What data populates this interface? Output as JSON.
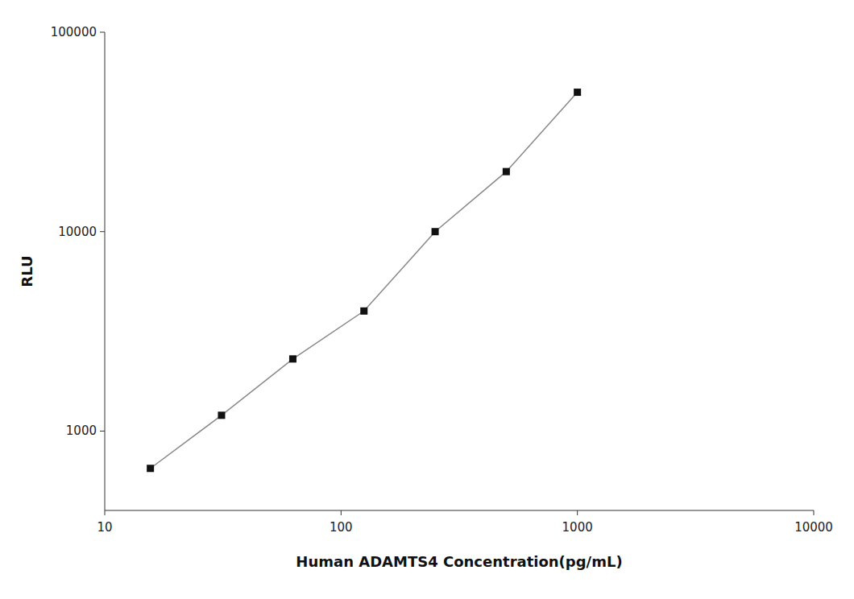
{
  "chart_data": {
    "type": "line",
    "x": [
      15.6,
      31.2,
      62.5,
      125,
      250,
      500,
      1000
    ],
    "values": [
      650,
      1200,
      2300,
      4000,
      10000,
      20000,
      50000
    ],
    "xlabel": "Human ADAMTS4 Concentration(pg/mL)",
    "ylabel": "RLU",
    "xlim": [
      10,
      10000
    ],
    "ylim": [
      400,
      100000
    ],
    "xticks": [
      10,
      100,
      1000,
      10000
    ],
    "yticks": [
      1000,
      10000,
      100000
    ],
    "log": true,
    "grid": false,
    "color": "#888888",
    "colors": [
      "#111111",
      "#111111",
      "#111111",
      "#111111",
      "#111111",
      "#111111",
      "#111111"
    ],
    "marker": "square",
    "line_style": "solid"
  }
}
